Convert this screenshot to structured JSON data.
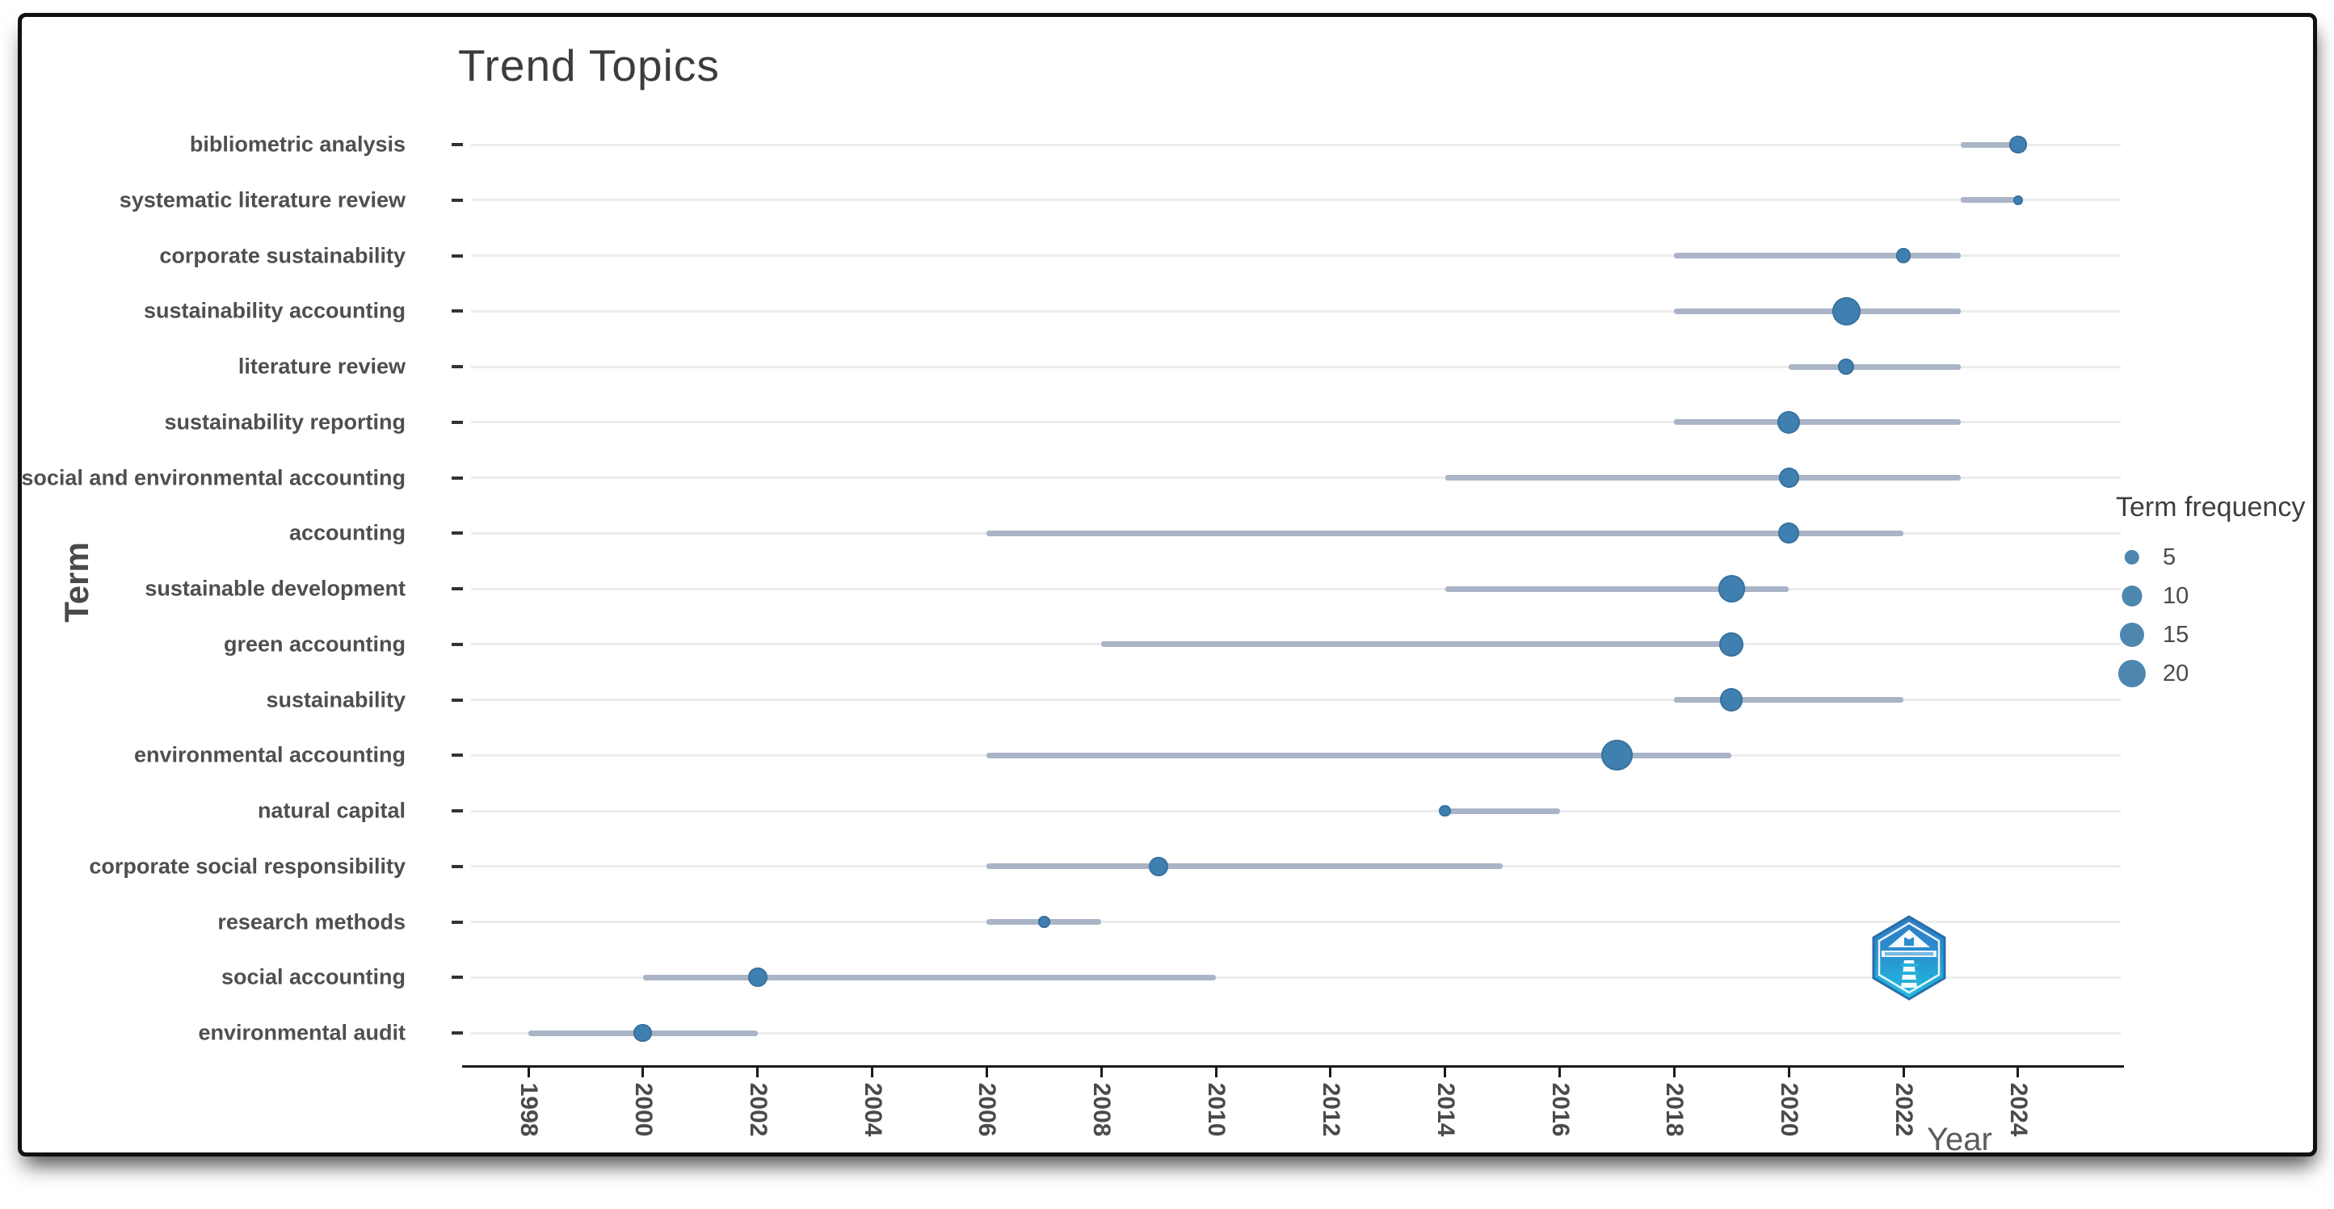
{
  "title": "Trend Topics",
  "axes": {
    "x_label": "Year",
    "y_label": "Term"
  },
  "legend": {
    "title": "Term frequency",
    "values": [
      5,
      10,
      15,
      20
    ]
  },
  "logo": {
    "name": "bibliometrix-hexagon-logo",
    "colors": {
      "top": "#2f7bc4",
      "bottom": "#1fc0e0"
    }
  },
  "colors": {
    "dot": "#4080b0",
    "range_line": "#a9b4c6",
    "gridline": "#ececec",
    "axis": "#1a1a1a",
    "text": "#4a4a4a"
  },
  "chart_data": {
    "type": "scatter",
    "subtype": "dot-range-timeline",
    "title": "Trend Topics",
    "xlabel": "Year",
    "ylabel": "Term",
    "xlim": [
      1997,
      2025
    ],
    "x_ticks": [
      1998,
      2000,
      2002,
      2004,
      2006,
      2008,
      2010,
      2012,
      2014,
      2016,
      2018,
      2020,
      2022,
      2024
    ],
    "grid": "horizontal-only",
    "legend": {
      "title": "Term frequency",
      "position": "right",
      "values": [
        5,
        10,
        15,
        20
      ]
    },
    "series": [
      {
        "term": "bibliometric analysis",
        "year_start": 2023,
        "year_end": 2024,
        "year_peak": 2024,
        "frequency": 7
      },
      {
        "term": "systematic literature review",
        "year_start": 2023,
        "year_end": 2024,
        "year_peak": 2024,
        "frequency": 2
      },
      {
        "term": "corporate sustainability",
        "year_start": 2018,
        "year_end": 2023,
        "year_peak": 2022,
        "frequency": 5
      },
      {
        "term": "sustainability accounting",
        "year_start": 2018,
        "year_end": 2023,
        "year_peak": 2021,
        "frequency": 21
      },
      {
        "term": "literature review",
        "year_start": 2020,
        "year_end": 2023,
        "year_peak": 2021,
        "frequency": 6
      },
      {
        "term": "sustainability reporting",
        "year_start": 2018,
        "year_end": 2023,
        "year_peak": 2020,
        "frequency": 13
      },
      {
        "term": "social and environmental accounting",
        "year_start": 2014,
        "year_end": 2023,
        "year_peak": 2020,
        "frequency": 10
      },
      {
        "term": "accounting",
        "year_start": 2006,
        "year_end": 2022,
        "year_peak": 2020,
        "frequency": 11
      },
      {
        "term": "sustainable development",
        "year_start": 2014,
        "year_end": 2020,
        "year_peak": 2019,
        "frequency": 19
      },
      {
        "term": "green accounting",
        "year_start": 2008,
        "year_end": 2019,
        "year_peak": 2019,
        "frequency": 15
      },
      {
        "term": "sustainability",
        "year_start": 2018,
        "year_end": 2022,
        "year_peak": 2019,
        "frequency": 13
      },
      {
        "term": "environmental accounting",
        "year_start": 2006,
        "year_end": 2019,
        "year_peak": 2017,
        "frequency": 26
      },
      {
        "term": "natural capital",
        "year_start": 2014,
        "year_end": 2016,
        "year_peak": 2014,
        "frequency": 3
      },
      {
        "term": "corporate social responsibility",
        "year_start": 2006,
        "year_end": 2015,
        "year_peak": 2009,
        "frequency": 9
      },
      {
        "term": "research methods",
        "year_start": 2006,
        "year_end": 2008,
        "year_peak": 2007,
        "frequency": 3
      },
      {
        "term": "social accounting",
        "year_start": 2000,
        "year_end": 2010,
        "year_peak": 2002,
        "frequency": 9
      },
      {
        "term": "environmental audit",
        "year_start": 1998,
        "year_end": 2002,
        "year_peak": 2000,
        "frequency": 8
      }
    ]
  }
}
